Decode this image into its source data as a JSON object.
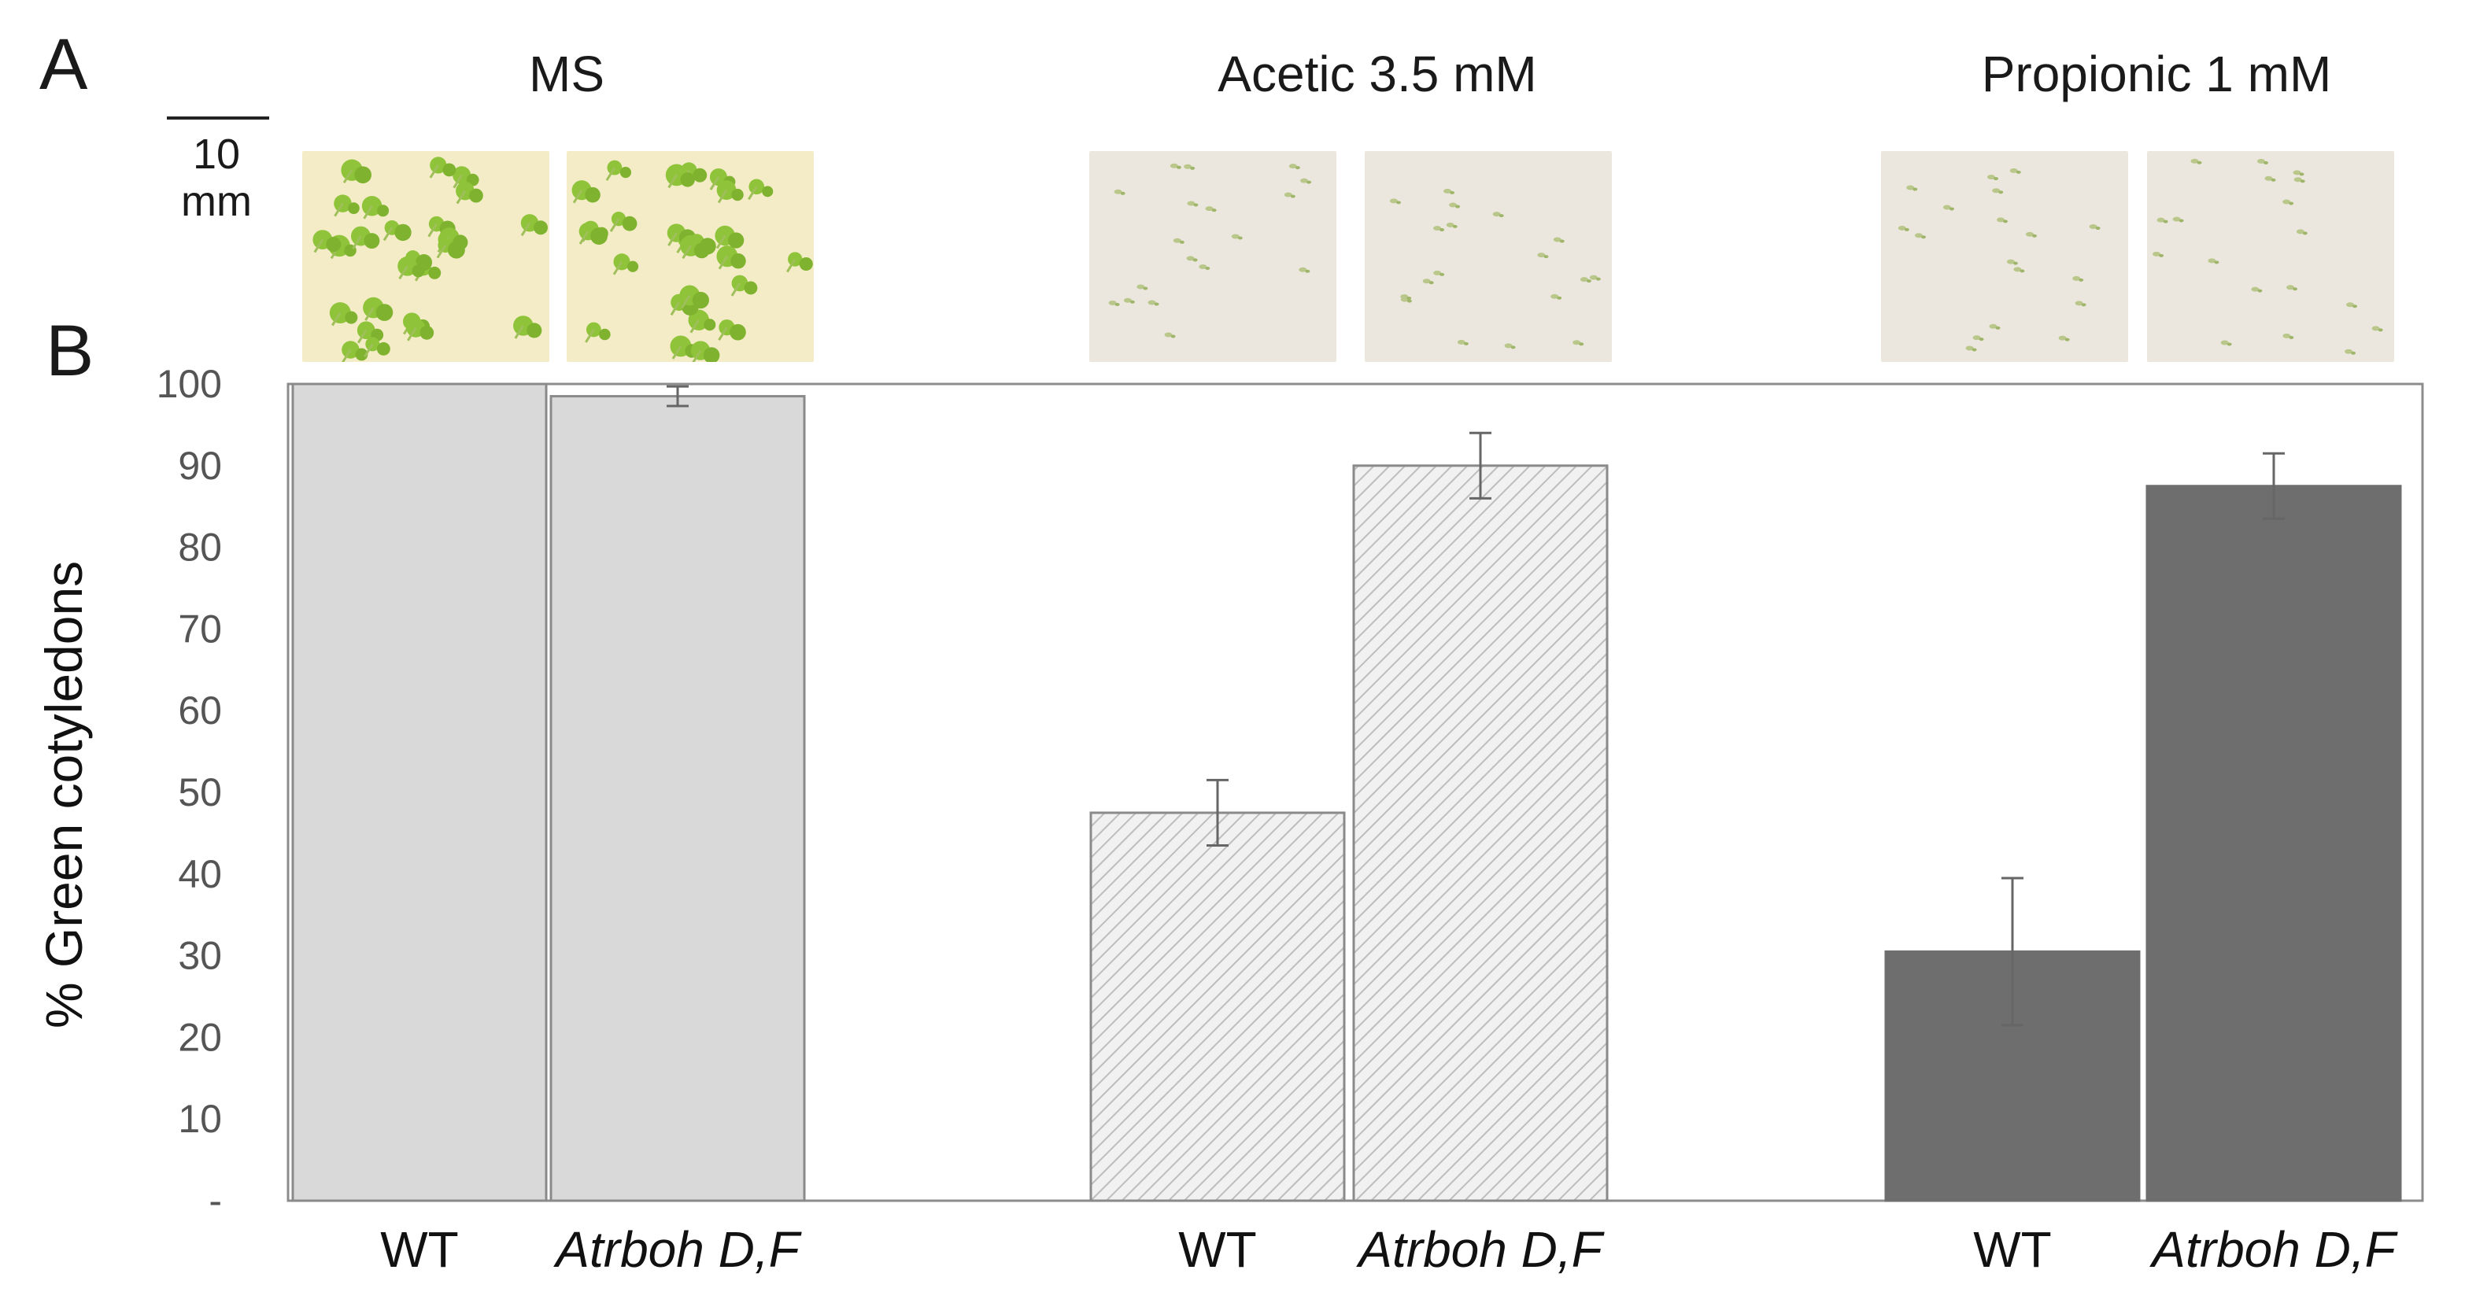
{
  "panel_a_letter": "A",
  "panel_b_letter": "B",
  "scale_bar": {
    "value": "10",
    "unit": "mm"
  },
  "conditions": [
    {
      "title": "MS"
    },
    {
      "title": "Acetic 3.5 mM"
    },
    {
      "title": "Propionic 1 mM"
    }
  ],
  "colors": {
    "ms_bar": "#d9d9d9",
    "acetic_bar": "#f1f1f1",
    "acetic_hatch": "#bdbdbd",
    "propionic_bar": "#6e6e6e",
    "seedling_green": "#8fc43a"
  },
  "photo_types": [
    "green-seedlings",
    "green-seedlings",
    "pale-seedlings",
    "pale-seedlings",
    "pale-seedlings",
    "pale-seedlings"
  ],
  "chart_data": {
    "type": "bar",
    "ylabel": "% Green cotyledons",
    "ylim": [
      0,
      100
    ],
    "ytick_labels": [
      "-",
      "10",
      "20",
      "30",
      "40",
      "50",
      "60",
      "70",
      "80",
      "90",
      "100"
    ],
    "categories": [
      "WT",
      "Atrboh D,F",
      "WT",
      "Atrboh D,F",
      "WT",
      "Atrboh D,F"
    ],
    "groups": [
      "MS",
      "MS",
      "Acetic 3.5 mM",
      "Acetic 3.5 mM",
      "Propionic 1 mM",
      "Propionic 1 mM"
    ],
    "values": [
      100,
      98.5,
      47.5,
      90,
      30.5,
      87.5
    ],
    "errors": [
      0,
      1.2,
      4,
      4,
      9,
      4
    ],
    "fills": [
      "solid-light",
      "solid-light",
      "hatched",
      "hatched",
      "solid-dark",
      "solid-dark"
    ],
    "grid": false
  }
}
